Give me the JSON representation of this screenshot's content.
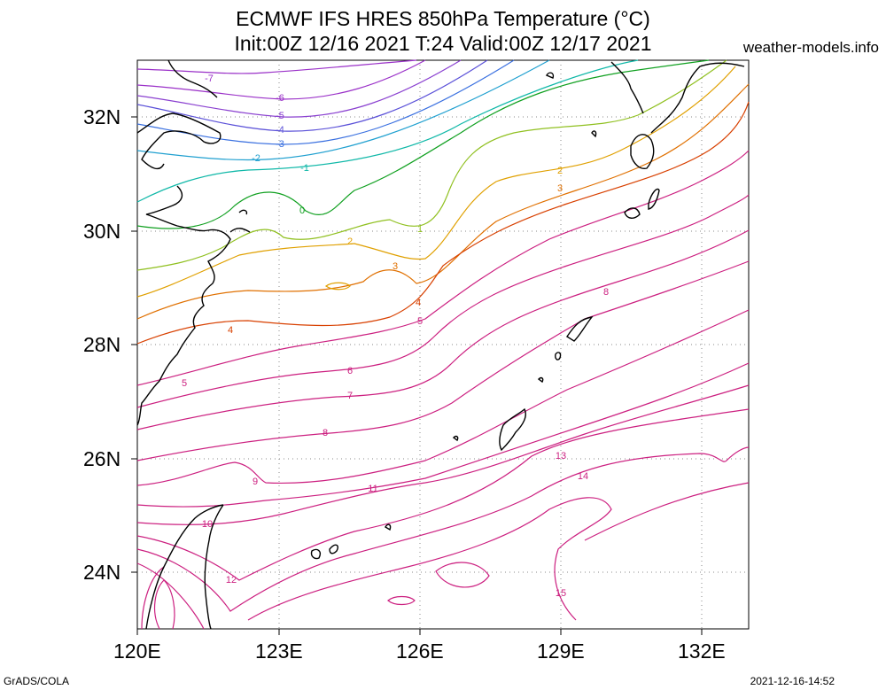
{
  "header": {
    "title_line1": "ECMWF IFS HRES 850hPa Temperature (°C)",
    "title_line2": "Init:00Z 12/16 2021 T:24 Valid:00Z 12/17 2021",
    "site": "weather-models.info"
  },
  "axes": {
    "lat_ticks": [
      "32N",
      "30N",
      "28N",
      "26N",
      "24N"
    ],
    "lon_ticks": [
      "120E",
      "123E",
      "126E",
      "129E",
      "132E"
    ]
  },
  "footer": {
    "left": "GrADS/COLA",
    "right": "2021-12-16-14:52"
  },
  "contour_labels": [
    {
      "text": "-7",
      "color": "#9a30c8"
    },
    {
      "text": "-6",
      "color": "#9a30c8"
    },
    {
      "text": "-5",
      "color": "#8a40d0"
    },
    {
      "text": "-4",
      "color": "#5a50d8"
    },
    {
      "text": "-3",
      "color": "#3a70e0"
    },
    {
      "text": "-2",
      "color": "#20a0d0"
    },
    {
      "text": "-1",
      "color": "#10b8a8"
    },
    {
      "text": "0",
      "color": "#10a020"
    },
    {
      "text": "1",
      "color": "#90c020"
    },
    {
      "text": "2",
      "color": "#e0a000"
    },
    {
      "text": "3",
      "color": "#e07000"
    },
    {
      "text": "4",
      "color": "#d84000"
    },
    {
      "text": "5",
      "color": "#cc2080"
    },
    {
      "text": "6",
      "color": "#cc2080"
    },
    {
      "text": "7",
      "color": "#cc2080"
    },
    {
      "text": "8",
      "color": "#cc2080"
    },
    {
      "text": "9",
      "color": "#cc2080"
    },
    {
      "text": "10",
      "color": "#cc2080"
    },
    {
      "text": "11",
      "color": "#cc2080"
    },
    {
      "text": "12",
      "color": "#cc2080"
    },
    {
      "text": "13",
      "color": "#cc2080"
    },
    {
      "text": "14",
      "color": "#cc2080"
    },
    {
      "text": "15",
      "color": "#cc2080"
    }
  ]
}
